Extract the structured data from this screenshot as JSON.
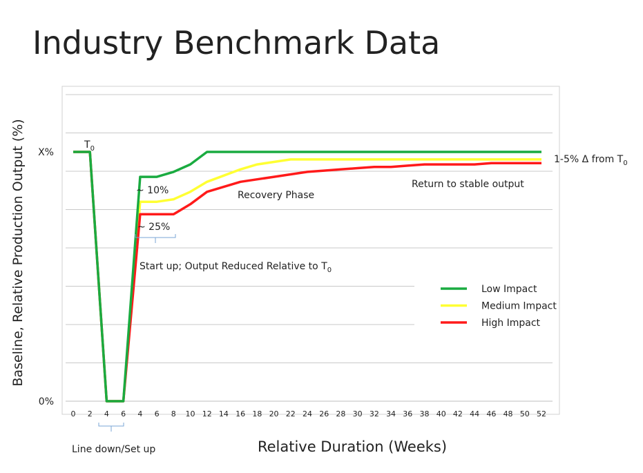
{
  "title": "Industry Benchmark Data",
  "chart_data": {
    "type": "line",
    "ylabel": "Baseline, Relative Production Output (%)",
    "xlabel": "Relative Duration (Weeks)",
    "categories": [
      "0",
      "2",
      "4",
      "6",
      "4",
      "6",
      "8",
      "10",
      "12",
      "14",
      "16",
      "18",
      "20",
      "22",
      "24",
      "26",
      "28",
      "30",
      "32",
      "34",
      "36",
      "38",
      "40",
      "42",
      "44",
      "46",
      "48",
      "50",
      "52"
    ],
    "ylim": [
      0,
      123
    ],
    "yticks": [
      {
        "value": 0,
        "label": "0%"
      },
      {
        "value": 100,
        "label": "X%"
      }
    ],
    "grid": true,
    "legend": "right",
    "series": [
      {
        "name": "Medium Impact",
        "color": "#ffff33",
        "values": [
          100,
          100,
          0,
          0,
          80,
          80,
          81,
          84,
          88,
          90.5,
          93,
          95,
          96,
          97,
          97,
          97,
          97,
          97,
          97,
          97,
          97,
          97,
          97,
          97,
          97,
          97,
          97,
          97,
          97
        ]
      },
      {
        "name": "High Impact",
        "color": "#ff1a1a",
        "values": [
          100,
          100,
          0,
          0,
          75,
          75,
          75,
          79,
          84,
          86,
          88,
          89,
          90,
          91,
          92,
          92.5,
          93,
          93.5,
          94,
          94,
          94.5,
          95,
          95,
          95,
          95,
          95.5,
          95.5,
          95.5,
          95.5
        ]
      },
      {
        "name": "Low Impact",
        "color": "#1aab40",
        "values": [
          100,
          100,
          0,
          0,
          90,
          90,
          92,
          95,
          100,
          100,
          100,
          100,
          100,
          100,
          100,
          100,
          100,
          100,
          100,
          100,
          100,
          100,
          100,
          100,
          100,
          100,
          100,
          100,
          100
        ]
      }
    ],
    "legend_order": [
      "Low Impact",
      "Medium Impact",
      "High Impact"
    ],
    "annotations": {
      "t0": {
        "text": "T",
        "sub": "0"
      },
      "delta": {
        "text": "1-5% Δ from T",
        "sub": "0"
      },
      "stable": "Return to stable output",
      "recovery": "Recovery Phase",
      "ten": "~ 10%",
      "twentyfive": "~ 25%",
      "startup": {
        "text": "Start up; Output Reduced Relative to T",
        "sub": "0"
      },
      "linedown": "Line down/Set up"
    }
  }
}
